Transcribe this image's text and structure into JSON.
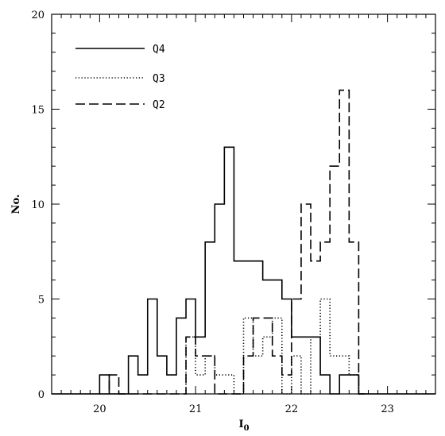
{
  "chart_data": {
    "type": "histogram",
    "xlabel": "I",
    "xlabel_sub": "0",
    "ylabel": "No.",
    "xlim": [
      19.5,
      23.5
    ],
    "ylim": [
      0,
      20
    ],
    "xticks": [
      20,
      21,
      22,
      23
    ],
    "yticks": [
      0,
      5,
      10,
      15,
      20
    ],
    "bin_width": 0.1,
    "bin_edges_start": 19.5,
    "legend": {
      "position": "top-left"
    },
    "series": [
      {
        "name": "Q4",
        "linestyle": "solid",
        "bins": [
          20.05,
          20.15,
          20.25,
          20.35,
          20.45,
          20.55,
          20.65,
          20.75,
          20.85,
          20.95,
          21.05,
          21.15,
          21.25,
          21.35,
          21.45,
          21.55,
          21.65,
          21.75,
          21.85,
          21.95,
          22.05,
          22.15,
          22.25,
          22.35,
          22.45,
          22.55,
          22.65,
          22.75
        ],
        "counts": [
          1,
          0,
          0,
          2,
          1,
          5,
          2,
          1,
          4,
          5,
          3,
          8,
          10,
          13,
          7,
          7,
          7,
          6,
          6,
          5,
          3,
          3,
          3,
          1,
          0,
          1,
          1,
          0
        ]
      },
      {
        "name": "Q3",
        "linestyle": "dotted",
        "bins": [
          20.95,
          21.05,
          21.15,
          21.25,
          21.35,
          21.45,
          21.55,
          21.65,
          21.75,
          21.85,
          21.95,
          22.05,
          22.15,
          22.25,
          22.35,
          22.45,
          22.55,
          22.65,
          22.75
        ],
        "counts": [
          3,
          1,
          2,
          1,
          1,
          0,
          4,
          2,
          3,
          4,
          0,
          2,
          0,
          3,
          5,
          2,
          2,
          1,
          0
        ]
      },
      {
        "name": "Q2",
        "linestyle": "dashed",
        "bins": [
          20.05,
          20.15,
          20.25,
          20.35,
          20.45,
          20.55,
          20.65,
          20.75,
          20.85,
          20.95,
          21.05,
          21.15,
          21.25,
          21.35,
          21.45,
          21.55,
          21.65,
          21.75,
          21.85,
          21.95,
          22.05,
          22.15,
          22.25,
          22.35,
          22.45,
          22.55,
          22.65,
          22.75
        ],
        "counts": [
          0,
          1,
          0,
          0,
          0,
          0,
          0,
          0,
          0,
          3,
          2,
          2,
          0,
          0,
          0,
          2,
          4,
          4,
          2,
          1,
          5,
          10,
          7,
          8,
          12,
          16,
          8,
          0
        ]
      }
    ]
  }
}
